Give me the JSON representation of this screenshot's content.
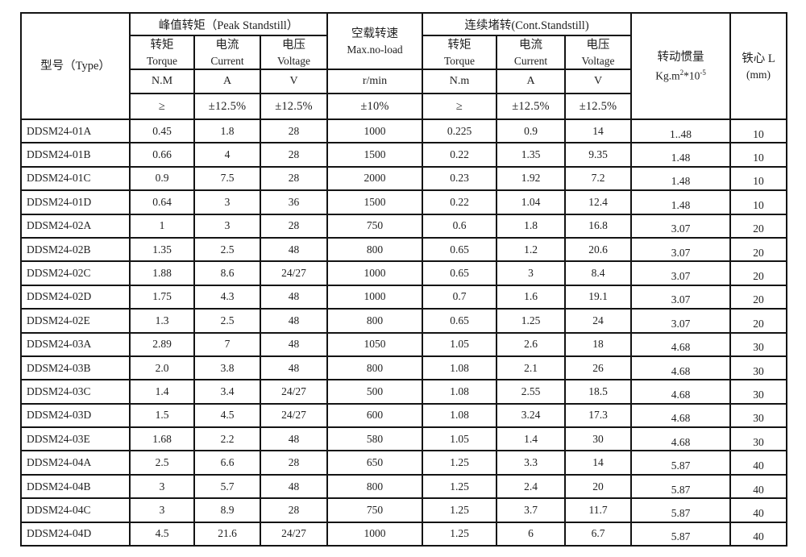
{
  "colors": {
    "border": "#141414",
    "text": "#222222",
    "background": "#ffffff"
  },
  "table": {
    "header": {
      "type": "型号（Type）",
      "peak_group": "峰值转矩（Peak Standstill）",
      "cont_group": "连续堵转(Cont.Standstill)",
      "noload": {
        "zh": "空载转速",
        "en": "Max.no-load",
        "unit": "r/min",
        "tol": "±10%"
      },
      "peak": {
        "torque": {
          "zh": "转矩",
          "en": "Torque",
          "unit": "N.M",
          "tol": "≥"
        },
        "current": {
          "zh": "电流",
          "en": "Current",
          "unit": "A",
          "tol": "±12.5%"
        },
        "voltage": {
          "zh": "电压",
          "en": "Voltage",
          "unit": "V",
          "tol": "±12.5%"
        }
      },
      "cont": {
        "torque": {
          "zh": "转矩",
          "en": "Torque",
          "unit": "N.m",
          "tol": "≥"
        },
        "current": {
          "zh": "电流",
          "en": "Current",
          "unit": "A",
          "tol": "±12.5%"
        },
        "voltage": {
          "zh": "电压",
          "en": "Voltage",
          "unit": "V",
          "tol": "±12.5%"
        }
      },
      "inertia": {
        "zh": "转动惯量",
        "unit_base1": "Kg.m",
        "unit_sup1": "2",
        "unit_base2": "*10",
        "unit_sup2": "-5"
      },
      "core": {
        "zh": "铁心 L",
        "unit": "(mm)"
      }
    },
    "rows": [
      {
        "model": "DDSM24-01A",
        "values": [
          "0.45",
          "1.8",
          "28",
          "1000",
          "0.225",
          "0.9",
          "14",
          "1..48",
          "10"
        ]
      },
      {
        "model": "DDSM24-01B",
        "values": [
          "0.66",
          "4",
          "28",
          "1500",
          "0.22",
          "1.35",
          "9.35",
          "1.48",
          "10"
        ]
      },
      {
        "model": "DDSM24-01C",
        "values": [
          "0.9",
          "7.5",
          "28",
          "2000",
          "0.23",
          "1.92",
          "7.2",
          "1.48",
          "10"
        ]
      },
      {
        "model": "DDSM24-01D",
        "values": [
          "0.64",
          "3",
          "36",
          "1500",
          "0.22",
          "1.04",
          "12.4",
          "1.48",
          "10"
        ]
      },
      {
        "model": "DDSM24-02A",
        "values": [
          "1",
          "3",
          "28",
          "750",
          "0.6",
          "1.8",
          "16.8",
          "3.07",
          "20"
        ]
      },
      {
        "model": "DDSM24-02B",
        "values": [
          "1.35",
          "2.5",
          "48",
          "800",
          "0.65",
          "1.2",
          "20.6",
          "3.07",
          "20"
        ]
      },
      {
        "model": "DDSM24-02C",
        "values": [
          "1.88",
          "8.6",
          "24/27",
          "1000",
          "0.65",
          "3",
          "8.4",
          "3.07",
          "20"
        ]
      },
      {
        "model": "DDSM24-02D",
        "values": [
          "1.75",
          "4.3",
          "48",
          "1000",
          "0.7",
          "1.6",
          "19.1",
          "3.07",
          "20"
        ]
      },
      {
        "model": "DDSM24-02E",
        "values": [
          "1.3",
          "2.5",
          "48",
          "800",
          "0.65",
          "1.25",
          "24",
          "3.07",
          "20"
        ]
      },
      {
        "model": "DDSM24-03A",
        "values": [
          "2.89",
          "7",
          "48",
          "1050",
          "1.05",
          "2.6",
          "18",
          "4.68",
          "30"
        ]
      },
      {
        "model": "DDSM24-03B",
        "values": [
          "2.0",
          "3.8",
          "48",
          "800",
          "1.08",
          "2.1",
          "26",
          "4.68",
          "30"
        ]
      },
      {
        "model": "DDSM24-03C",
        "values": [
          "1.4",
          "3.4",
          "24/27",
          "500",
          "1.08",
          "2.55",
          "18.5",
          "4.68",
          "30"
        ]
      },
      {
        "model": "DDSM24-03D",
        "values": [
          "1.5",
          "4.5",
          "24/27",
          "600",
          "1.08",
          "3.24",
          "17.3",
          "4.68",
          "30"
        ]
      },
      {
        "model": "DDSM24-03E",
        "values": [
          "1.68",
          "2.2",
          "48",
          "580",
          "1.05",
          "1.4",
          "30",
          "4.68",
          "30"
        ]
      },
      {
        "model": "DDSM24-04A",
        "values": [
          "2.5",
          "6.6",
          "28",
          "650",
          "1.25",
          "3.3",
          "14",
          "5.87",
          "40"
        ]
      },
      {
        "model": "DDSM24-04B",
        "values": [
          "3",
          "5.7",
          "48",
          "800",
          "1.25",
          "2.4",
          "20",
          "5.87",
          "40"
        ]
      },
      {
        "model": "DDSM24-04C",
        "values": [
          "3",
          "8.9",
          "28",
          "750",
          "1.25",
          "3.7",
          "11.7",
          "5.87",
          "40"
        ]
      },
      {
        "model": "DDSM24-04D",
        "values": [
          "4.5",
          "21.6",
          "24/27",
          "1000",
          "1.25",
          "6",
          "6.7",
          "5.87",
          "40"
        ]
      }
    ]
  }
}
